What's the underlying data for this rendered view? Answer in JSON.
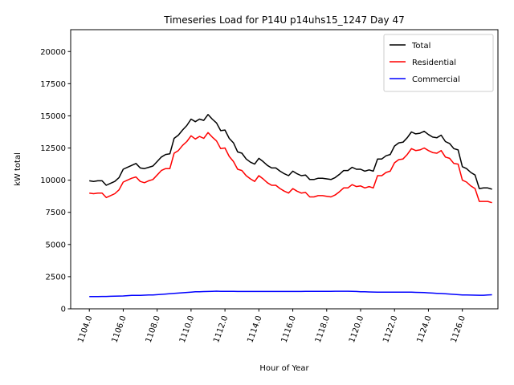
{
  "chart_data": {
    "type": "line",
    "title": "Timeseries Load for P14U p14uhs15_1247  Day 47",
    "xlabel": "Hour of Year",
    "ylabel": "kW total",
    "xlim": [
      1102.9,
      1128.1
    ],
    "ylim": [
      0,
      21700
    ],
    "x_ticks": [
      1104,
      1106,
      1108,
      1110,
      1112,
      1114,
      1116,
      1118,
      1120,
      1122,
      1124,
      1126
    ],
    "x_tick_labels": [
      "1104.0",
      "1106.0",
      "1108.0",
      "1110.0",
      "1112.0",
      "1114.0",
      "1116.0",
      "1118.0",
      "1120.0",
      "1122.0",
      "1124.0",
      "1126.0"
    ],
    "y_ticks": [
      0,
      2500,
      5000,
      7500,
      10000,
      12500,
      15000,
      17500,
      20000
    ],
    "y_tick_labels": [
      "0",
      "2500",
      "5000",
      "7500",
      "10000",
      "12500",
      "15000",
      "17500",
      "20000"
    ],
    "legend_position": "top-right",
    "x": [
      1104.0,
      1104.25,
      1104.5,
      1104.75,
      1105.0,
      1105.25,
      1105.5,
      1105.75,
      1106.0,
      1106.25,
      1106.5,
      1106.75,
      1107.0,
      1107.25,
      1107.5,
      1107.75,
      1108.0,
      1108.25,
      1108.5,
      1108.75,
      1109.0,
      1109.25,
      1109.5,
      1109.75,
      1110.0,
      1110.25,
      1110.5,
      1110.75,
      1111.0,
      1111.25,
      1111.5,
      1111.75,
      1112.0,
      1112.25,
      1112.5,
      1112.75,
      1113.0,
      1113.25,
      1113.5,
      1113.75,
      1114.0,
      1114.25,
      1114.5,
      1114.75,
      1115.0,
      1115.25,
      1115.5,
      1115.75,
      1116.0,
      1116.25,
      1116.5,
      1116.75,
      1117.0,
      1117.25,
      1117.5,
      1117.75,
      1118.0,
      1118.25,
      1118.5,
      1118.75,
      1119.0,
      1119.25,
      1119.5,
      1119.75,
      1120.0,
      1120.25,
      1120.5,
      1120.75,
      1121.0,
      1121.25,
      1121.5,
      1121.75,
      1122.0,
      1122.25,
      1122.5,
      1122.75,
      1123.0,
      1123.25,
      1123.5,
      1123.75,
      1124.0,
      1124.25,
      1124.5,
      1124.75,
      1125.0,
      1125.25,
      1125.5,
      1125.75,
      1126.0,
      1126.25,
      1126.5,
      1126.75,
      1127.0,
      1127.25,
      1127.5,
      1127.75
    ],
    "series": [
      {
        "name": "Total",
        "color": "#000000",
        "values": [
          9950,
          9900,
          9950,
          9950,
          9600,
          9750,
          9900,
          10200,
          10850,
          11000,
          11150,
          11300,
          10950,
          10900,
          11000,
          11100,
          11450,
          11800,
          12000,
          12050,
          13250,
          13500,
          13900,
          14250,
          14750,
          14550,
          14750,
          14650,
          15100,
          14750,
          14450,
          13850,
          13900,
          13250,
          12900,
          12200,
          12100,
          11650,
          11400,
          11250,
          11700,
          11450,
          11150,
          10950,
          10950,
          10700,
          10500,
          10350,
          10700,
          10500,
          10350,
          10400,
          10050,
          10050,
          10150,
          10150,
          10100,
          10050,
          10200,
          10450,
          10750,
          10750,
          11000,
          10850,
          10850,
          10700,
          10800,
          10700,
          11650,
          11650,
          11900,
          12000,
          12650,
          12900,
          12950,
          13300,
          13750,
          13600,
          13650,
          13800,
          13550,
          13350,
          13300,
          13500,
          13000,
          12850,
          12450,
          12350,
          11050,
          10900,
          10600,
          10400,
          9350,
          9400,
          9400,
          9300
        ]
      },
      {
        "name": "Residential",
        "color": "#ff0000",
        "values": [
          9000,
          8950,
          9000,
          9000,
          8650,
          8800,
          8950,
          9250,
          9850,
          10000,
          10150,
          10250,
          9900,
          9800,
          9950,
          10050,
          10400,
          10750,
          10900,
          10900,
          12100,
          12300,
          12700,
          13000,
          13450,
          13200,
          13400,
          13250,
          13700,
          13350,
          13050,
          12450,
          12500,
          11850,
          11450,
          10850,
          10750,
          10350,
          10100,
          9900,
          10350,
          10100,
          9800,
          9600,
          9600,
          9350,
          9150,
          9000,
          9350,
          9150,
          9000,
          9050,
          8700,
          8700,
          8800,
          8800,
          8750,
          8700,
          8850,
          9100,
          9400,
          9400,
          9650,
          9500,
          9550,
          9400,
          9500,
          9400,
          10350,
          10350,
          10600,
          10700,
          11350,
          11600,
          11650,
          12000,
          12450,
          12300,
          12350,
          12500,
          12300,
          12150,
          12100,
          12300,
          11800,
          11700,
          11300,
          11250,
          10000,
          9850,
          9550,
          9350,
          8350,
          8350,
          8350,
          8250
        ]
      },
      {
        "name": "Commercial",
        "color": "#0000ff",
        "values": [
          950,
          950,
          950,
          960,
          960,
          970,
          980,
          990,
          1000,
          1020,
          1040,
          1050,
          1050,
          1060,
          1070,
          1080,
          1100,
          1120,
          1150,
          1180,
          1200,
          1220,
          1250,
          1270,
          1300,
          1320,
          1330,
          1340,
          1350,
          1360,
          1370,
          1360,
          1360,
          1355,
          1355,
          1350,
          1350,
          1345,
          1345,
          1345,
          1345,
          1345,
          1345,
          1345,
          1345,
          1345,
          1345,
          1350,
          1350,
          1350,
          1350,
          1355,
          1355,
          1355,
          1355,
          1360,
          1360,
          1360,
          1365,
          1365,
          1365,
          1365,
          1355,
          1345,
          1330,
          1320,
          1310,
          1305,
          1300,
          1300,
          1295,
          1290,
          1300,
          1300,
          1300,
          1295,
          1290,
          1280,
          1270,
          1260,
          1240,
          1220,
          1205,
          1190,
          1170,
          1150,
          1120,
          1100,
          1080,
          1070,
          1065,
          1060,
          1055,
          1055,
          1070,
          1090
        ]
      }
    ]
  }
}
